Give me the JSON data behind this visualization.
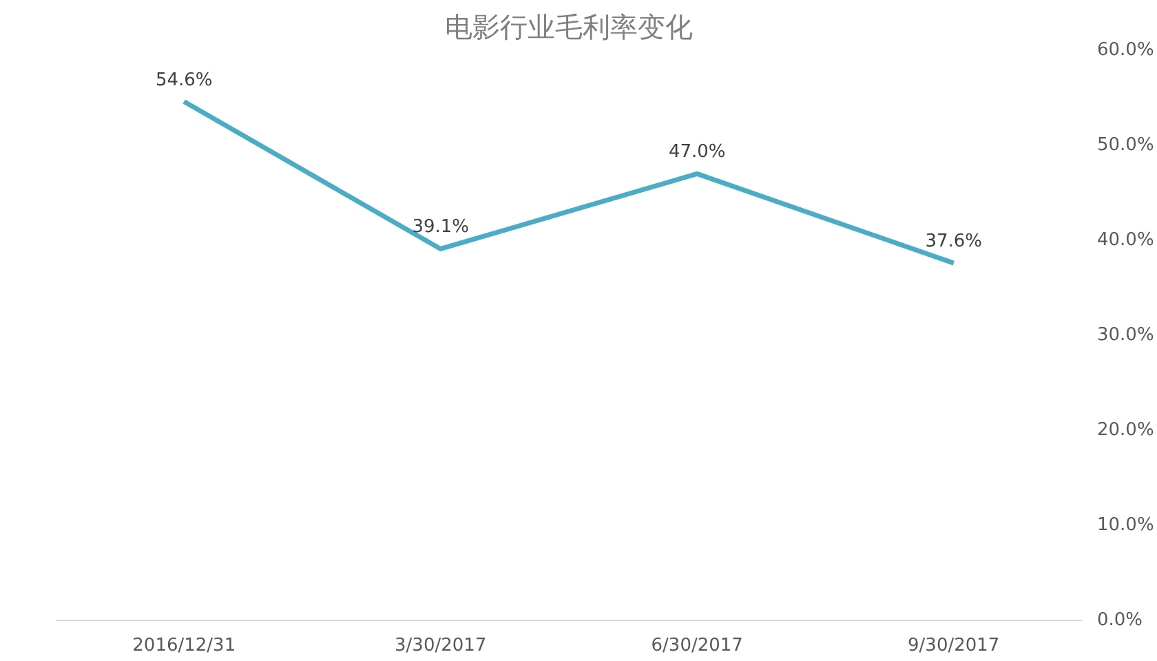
{
  "chart_data": {
    "type": "line",
    "title": "电影行业毛利率变化",
    "categories": [
      "2016/12/31",
      "3/30/2017",
      "6/30/2017",
      "9/30/2017"
    ],
    "series": [
      {
        "color": "#4bacc6",
        "values": [
          54.6,
          39.1,
          47.0,
          37.6
        ],
        "value_labels": [
          "54.6%",
          "39.1%",
          "47.0%",
          "37.6%"
        ]
      }
    ],
    "ylim": [
      0,
      60
    ],
    "yticks": [
      {
        "value": 0,
        "label": "0.0%"
      },
      {
        "value": 10,
        "label": "10.0%"
      },
      {
        "value": 20,
        "label": "20.0%"
      },
      {
        "value": 30,
        "label": "30.0%"
      },
      {
        "value": 40,
        "label": "40.0%"
      },
      {
        "value": 50,
        "label": "50.0%"
      },
      {
        "value": 60,
        "label": "60.0%"
      }
    ],
    "marker": "none",
    "line_style": "solid"
  }
}
